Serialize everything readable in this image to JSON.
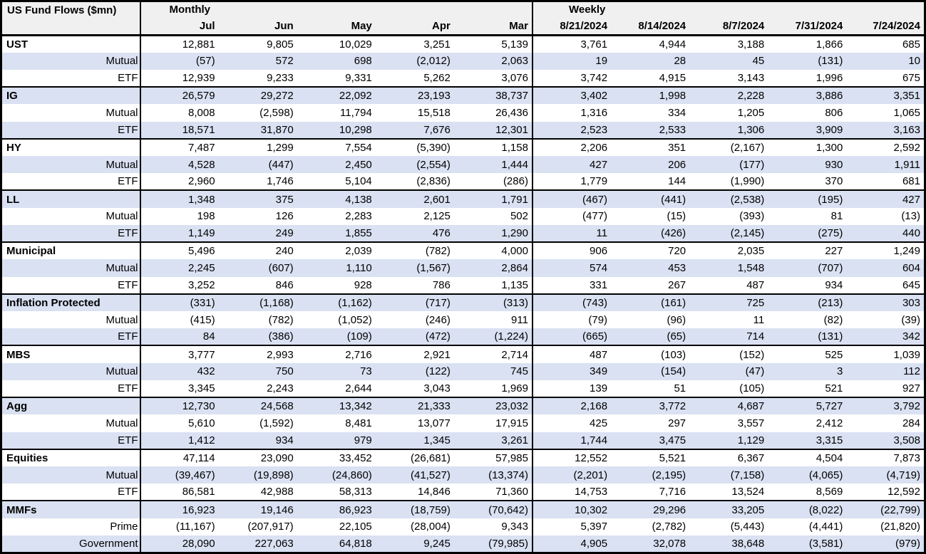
{
  "colors": {
    "band": "#d9e1f2",
    "header_bg": "#f0f0f0",
    "border": "#000000",
    "text": "#000000"
  },
  "chart_data": {
    "type": "table",
    "title": "US Fund Flows ($mn)",
    "column_groups": [
      {
        "label": "Monthly",
        "columns": [
          "Jul",
          "Jun",
          "May",
          "Apr",
          "Mar"
        ]
      },
      {
        "label": "Weekly",
        "columns": [
          "8/21/2024",
          "8/14/2024",
          "8/7/2024",
          "7/31/2024",
          "7/24/2024"
        ]
      }
    ],
    "sections": [
      {
        "label": "UST",
        "total": [
          "12,881",
          "9,805",
          "10,029",
          "3,251",
          "5,139",
          "3,761",
          "4,944",
          "3,188",
          "1,866",
          "685"
        ],
        "subs": [
          {
            "label": "Mutual",
            "values": [
              "(57)",
              "572",
              "698",
              "(2,012)",
              "2,063",
              "19",
              "28",
              "45",
              "(131)",
              "10"
            ]
          },
          {
            "label": "ETF",
            "values": [
              "12,939",
              "9,233",
              "9,331",
              "5,262",
              "3,076",
              "3,742",
              "4,915",
              "3,143",
              "1,996",
              "675"
            ]
          }
        ]
      },
      {
        "label": "IG",
        "total": [
          "26,579",
          "29,272",
          "22,092",
          "23,193",
          "38,737",
          "3,402",
          "1,998",
          "2,228",
          "3,886",
          "3,351"
        ],
        "subs": [
          {
            "label": "Mutual",
            "values": [
              "8,008",
              "(2,598)",
              "11,794",
              "15,518",
              "26,436",
              "1,316",
              "334",
              "1,205",
              "806",
              "1,065"
            ]
          },
          {
            "label": "ETF",
            "values": [
              "18,571",
              "31,870",
              "10,298",
              "7,676",
              "12,301",
              "2,523",
              "2,533",
              "1,306",
              "3,909",
              "3,163"
            ]
          }
        ]
      },
      {
        "label": "HY",
        "total": [
          "7,487",
          "1,299",
          "7,554",
          "(5,390)",
          "1,158",
          "2,206",
          "351",
          "(2,167)",
          "1,300",
          "2,592"
        ],
        "subs": [
          {
            "label": "Mutual",
            "values": [
              "4,528",
              "(447)",
              "2,450",
              "(2,554)",
              "1,444",
              "427",
              "206",
              "(177)",
              "930",
              "1,911"
            ]
          },
          {
            "label": "ETF",
            "values": [
              "2,960",
              "1,746",
              "5,104",
              "(2,836)",
              "(286)",
              "1,779",
              "144",
              "(1,990)",
              "370",
              "681"
            ]
          }
        ]
      },
      {
        "label": "LL",
        "total": [
          "1,348",
          "375",
          "4,138",
          "2,601",
          "1,791",
          "(467)",
          "(441)",
          "(2,538)",
          "(195)",
          "427"
        ],
        "subs": [
          {
            "label": "Mutual",
            "values": [
              "198",
              "126",
              "2,283",
              "2,125",
              "502",
              "(477)",
              "(15)",
              "(393)",
              "81",
              "(13)"
            ]
          },
          {
            "label": "ETF",
            "values": [
              "1,149",
              "249",
              "1,855",
              "476",
              "1,290",
              "11",
              "(426)",
              "(2,145)",
              "(275)",
              "440"
            ]
          }
        ]
      },
      {
        "label": "Municipal",
        "total": [
          "5,496",
          "240",
          "2,039",
          "(782)",
          "4,000",
          "906",
          "720",
          "2,035",
          "227",
          "1,249"
        ],
        "subs": [
          {
            "label": "Mutual",
            "values": [
              "2,245",
              "(607)",
              "1,110",
              "(1,567)",
              "2,864",
              "574",
              "453",
              "1,548",
              "(707)",
              "604"
            ]
          },
          {
            "label": "ETF",
            "values": [
              "3,252",
              "846",
              "928",
              "786",
              "1,135",
              "331",
              "267",
              "487",
              "934",
              "645"
            ]
          }
        ]
      },
      {
        "label": "Inflation Protected",
        "total": [
          "(331)",
          "(1,168)",
          "(1,162)",
          "(717)",
          "(313)",
          "(743)",
          "(161)",
          "725",
          "(213)",
          "303"
        ],
        "subs": [
          {
            "label": "Mutual",
            "values": [
              "(415)",
              "(782)",
              "(1,052)",
              "(246)",
              "911",
              "(79)",
              "(96)",
              "11",
              "(82)",
              "(39)"
            ]
          },
          {
            "label": "ETF",
            "values": [
              "84",
              "(386)",
              "(109)",
              "(472)",
              "(1,224)",
              "(665)",
              "(65)",
              "714",
              "(131)",
              "342"
            ]
          }
        ]
      },
      {
        "label": "MBS",
        "total": [
          "3,777",
          "2,993",
          "2,716",
          "2,921",
          "2,714",
          "487",
          "(103)",
          "(152)",
          "525",
          "1,039"
        ],
        "subs": [
          {
            "label": "Mutual",
            "values": [
              "432",
              "750",
              "73",
              "(122)",
              "745",
              "349",
              "(154)",
              "(47)",
              "3",
              "112"
            ]
          },
          {
            "label": "ETF",
            "values": [
              "3,345",
              "2,243",
              "2,644",
              "3,043",
              "1,969",
              "139",
              "51",
              "(105)",
              "521",
              "927"
            ]
          }
        ]
      },
      {
        "label": "Agg",
        "total": [
          "12,730",
          "24,568",
          "13,342",
          "21,333",
          "23,032",
          "2,168",
          "3,772",
          "4,687",
          "5,727",
          "3,792"
        ],
        "subs": [
          {
            "label": "Mutual",
            "values": [
              "5,610",
              "(1,592)",
              "8,481",
              "13,077",
              "17,915",
              "425",
              "297",
              "3,557",
              "2,412",
              "284"
            ]
          },
          {
            "label": "ETF",
            "values": [
              "1,412",
              "934",
              "979",
              "1,345",
              "3,261",
              "1,744",
              "3,475",
              "1,129",
              "3,315",
              "3,508"
            ]
          }
        ]
      },
      {
        "label": "Equities",
        "total": [
          "47,114",
          "23,090",
          "33,452",
          "(26,681)",
          "57,985",
          "12,552",
          "5,521",
          "6,367",
          "4,504",
          "7,873"
        ],
        "subs": [
          {
            "label": "Mutual",
            "values": [
              "(39,467)",
              "(19,898)",
              "(24,860)",
              "(41,527)",
              "(13,374)",
              "(2,201)",
              "(2,195)",
              "(7,158)",
              "(4,065)",
              "(4,719)"
            ]
          },
          {
            "label": "ETF",
            "values": [
              "86,581",
              "42,988",
              "58,313",
              "14,846",
              "71,360",
              "14,753",
              "7,716",
              "13,524",
              "8,569",
              "12,592"
            ]
          }
        ]
      },
      {
        "label": "MMFs",
        "total": [
          "16,923",
          "19,146",
          "86,923",
          "(18,759)",
          "(70,642)",
          "10,302",
          "29,296",
          "33,205",
          "(8,022)",
          "(22,799)"
        ],
        "subs": [
          {
            "label": "Prime",
            "values": [
              "(11,167)",
              "(207,917)",
              "22,105",
              "(28,004)",
              "9,343",
              "5,397",
              "(2,782)",
              "(5,443)",
              "(4,441)",
              "(21,820)"
            ]
          },
          {
            "label": "Government",
            "values": [
              "28,090",
              "227,063",
              "64,818",
              "9,245",
              "(79,985)",
              "4,905",
              "32,078",
              "38,648",
              "(3,581)",
              "(979)"
            ]
          }
        ]
      }
    ]
  }
}
